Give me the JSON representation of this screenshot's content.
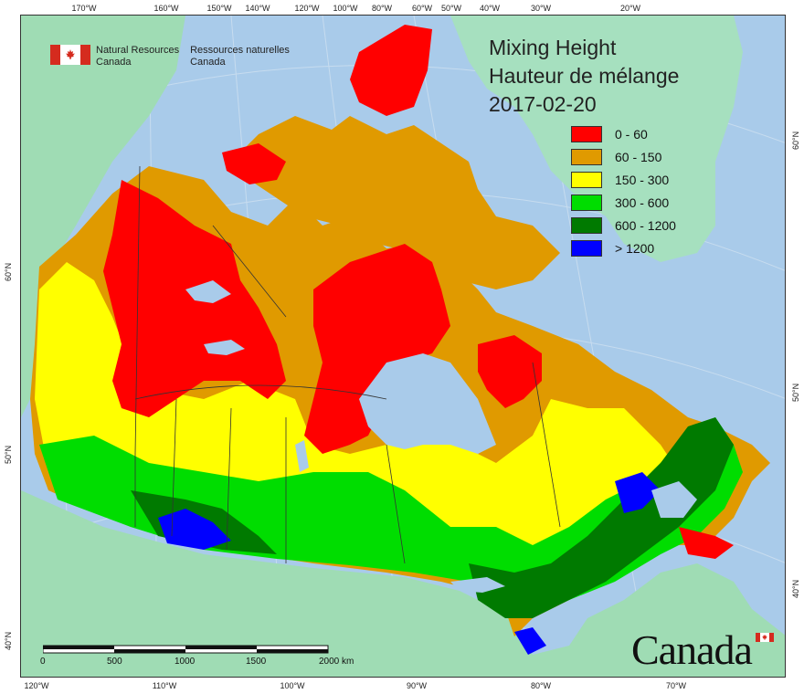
{
  "title": {
    "line1": "Mixing Height",
    "line2": "Hauteur de mélange",
    "date": "2017-02-20"
  },
  "agency": {
    "en_line1": "Natural Resources",
    "en_line2": "Canada",
    "fr_line1": "Ressources naturelles",
    "fr_line2": "Canada"
  },
  "wordmark": "Canada",
  "legend": [
    {
      "label": "0 - 60",
      "color": "#ff0000"
    },
    {
      "label": "60 - 150",
      "color": "#e09a00"
    },
    {
      "label": "150 - 300",
      "color": "#ffff00"
    },
    {
      "label": "300 - 600",
      "color": "#00dd00"
    },
    {
      "label": "600 - 1200",
      "color": "#007a00"
    },
    {
      "label": "> 1200",
      "color": "#0000ff"
    }
  ],
  "top_ticks": [
    "170°W",
    "160°W",
    "150°W",
    "140°W",
    "120°W",
    "100°W",
    "80°W",
    "60°W",
    "50°W",
    "40°W",
    "30°W",
    "20°W"
  ],
  "bottom_ticks": [
    "120°W",
    "110°W",
    "100°W",
    "90°W",
    "80°W",
    "70°W"
  ],
  "left_ticks": [
    "60°N",
    "50°N",
    "40°N"
  ],
  "right_ticks": [
    "60°N",
    "50°N",
    "40°N"
  ],
  "scale": {
    "labels": [
      "0",
      "500",
      "1000",
      "1500",
      "2000  km"
    ]
  },
  "colors": {
    "ocean": "#a9cbea",
    "land_other": "#9fdcb4",
    "greenland": "#a6e0bf",
    "water": "#a9cbea",
    "boundary": "#333333"
  }
}
